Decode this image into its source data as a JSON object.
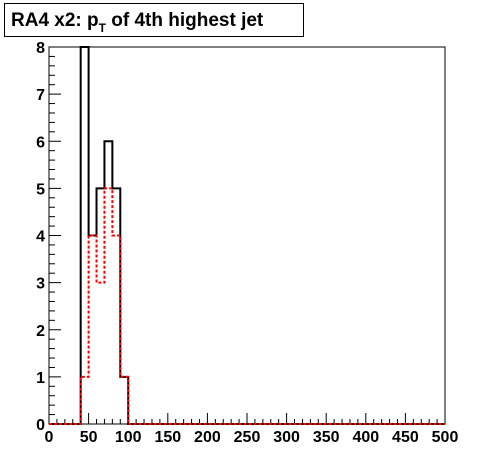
{
  "title": {
    "prefix": "RA4 x2: p",
    "subscript": "T",
    "suffix": " of 4th highest jet"
  },
  "chart_data": {
    "type": "histogram",
    "xlim": [
      0,
      500
    ],
    "ylim": [
      0,
      8
    ],
    "bin_width": 10,
    "x_ticks": [
      0,
      50,
      100,
      150,
      200,
      250,
      300,
      350,
      400,
      450,
      500
    ],
    "y_ticks": [
      0,
      1,
      2,
      3,
      4,
      5,
      6,
      7,
      8
    ],
    "grid": false,
    "series": [
      {
        "style": "solid",
        "color": "#000000",
        "bin_edges": [
          0,
          10,
          20,
          30,
          40,
          50,
          60,
          70,
          80,
          90,
          100,
          500
        ],
        "values": [
          0,
          0,
          0,
          0,
          8,
          4,
          5,
          6,
          5,
          1,
          0
        ]
      },
      {
        "style": "dotted",
        "color": "#ff0000",
        "bin_edges": [
          0,
          10,
          20,
          30,
          40,
          50,
          60,
          70,
          80,
          90,
          100,
          500
        ],
        "values": [
          0,
          0,
          0,
          0,
          1,
          4,
          3,
          5,
          4,
          1,
          0
        ]
      }
    ]
  }
}
